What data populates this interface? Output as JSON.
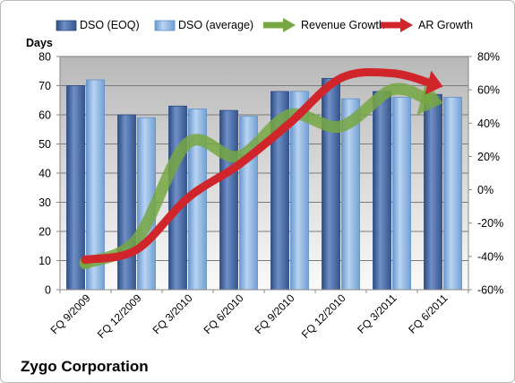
{
  "title": "Zygo Corporation",
  "chart_data": {
    "type": "bar",
    "categories": [
      "FQ 9/2009",
      "FQ 12/2009",
      "FQ 3/2010",
      "FQ 6/2010",
      "FQ 9/2010",
      "FQ 12/2010",
      "FQ 3/2011",
      "FQ 6/2011"
    ],
    "series": [
      {
        "name": "DSO (EOQ)",
        "type": "bar",
        "axis": "left",
        "values": [
          70,
          60,
          63,
          61.5,
          68,
          72.5,
          68,
          67
        ],
        "color": "#4f6fa8"
      },
      {
        "name": "DSO (average)",
        "type": "bar",
        "axis": "left",
        "values": [
          72,
          59,
          62,
          59.5,
          68,
          65.5,
          66,
          66
        ],
        "color": "#8fb6e0"
      },
      {
        "name": "Revenue Growth",
        "type": "line",
        "axis": "right",
        "values": [
          -44,
          -30,
          28,
          20,
          45,
          38,
          60,
          52
        ],
        "color": "#77a743"
      },
      {
        "name": "AR Growth",
        "type": "line",
        "axis": "right",
        "values": [
          -42,
          -36,
          -5,
          15,
          40,
          67,
          70,
          62
        ],
        "color": "#d0262b"
      }
    ],
    "ylabel": "Days",
    "ylim": [
      0,
      80
    ],
    "y_ticks": [
      "0",
      "10",
      "20",
      "30",
      "40",
      "50",
      "60",
      "70",
      "80"
    ],
    "y2lim": [
      -60,
      80
    ],
    "y2_ticks": [
      "-60%",
      "-40%",
      "-20%",
      "0%",
      "20%",
      "40%",
      "60%",
      "80%"
    ],
    "grid": true,
    "legend": "top"
  }
}
